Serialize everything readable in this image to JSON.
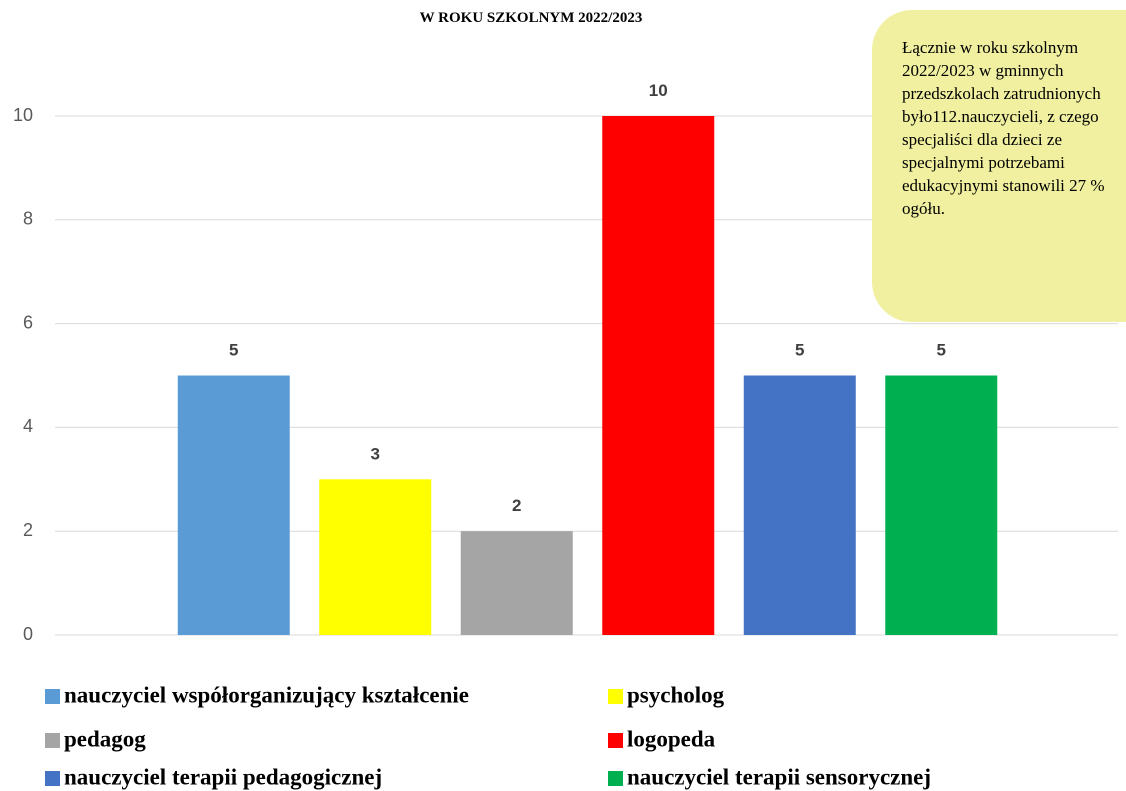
{
  "chart_data": {
    "type": "bar",
    "title": "W ROKU SZKOLNYM 2022/2023",
    "annotation": "Łącznie w roku szkolnym 2022/2023 w gminnych przedszkolach zatrudnionych było112.nauczycieli, z czego specjaliści dla dzieci ze specjalnymi potrzebami edukacyjnymi stanowili 27 % ogółu.",
    "series": [
      {
        "name": "nauczyciel współorganizujący kształcenie",
        "color": "#5b9bd5",
        "values": [
          5
        ]
      },
      {
        "name": "psycholog",
        "color": "#ffff00",
        "values": [
          3
        ]
      },
      {
        "name": "pedagog",
        "color": "#a5a5a5",
        "values": [
          2
        ]
      },
      {
        "name": "logopeda",
        "color": "#ff0000",
        "values": [
          10
        ]
      },
      {
        "name": "nauczyciel terapii pedagogicznej",
        "color": "#4472c4",
        "values": [
          5
        ]
      },
      {
        "name": "nauczyciel terapii sensorycznej",
        "color": "#00b050",
        "values": [
          5
        ]
      }
    ],
    "ylim": [
      0,
      10
    ],
    "yticks": [
      0,
      2,
      4,
      6,
      8,
      10
    ],
    "grid": true,
    "legend": "bottom"
  }
}
